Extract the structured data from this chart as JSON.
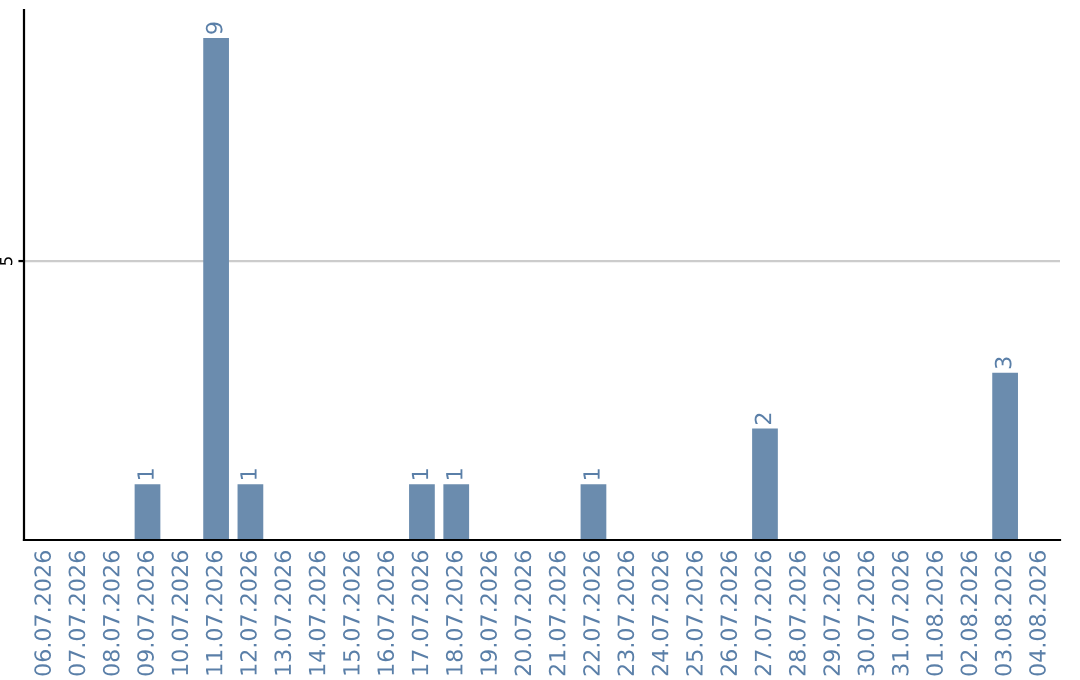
{
  "chart_data": {
    "type": "bar",
    "categories": [
      "06.07.2026",
      "07.07.2026",
      "08.07.2026",
      "09.07.2026",
      "10.07.2026",
      "11.07.2026",
      "12.07.2026",
      "13.07.2026",
      "14.07.2026",
      "15.07.2026",
      "16.07.2026",
      "17.07.2026",
      "18.07.2026",
      "19.07.2026",
      "20.07.2026",
      "21.07.2026",
      "22.07.2026",
      "23.07.2026",
      "24.07.2026",
      "25.07.2026",
      "26.07.2026",
      "27.07.2026",
      "28.07.2026",
      "29.07.2026",
      "30.07.2026",
      "31.07.2026",
      "01.08.2026",
      "02.08.2026",
      "03.08.2026",
      "04.08.2026"
    ],
    "values": [
      0,
      0,
      0,
      1,
      0,
      9,
      1,
      0,
      0,
      0,
      0,
      1,
      1,
      0,
      0,
      0,
      1,
      0,
      0,
      0,
      0,
      2,
      0,
      0,
      0,
      0,
      0,
      0,
      3,
      0
    ],
    "value_labels": [
      null,
      null,
      null,
      "1",
      null,
      "9",
      "1",
      null,
      null,
      null,
      null,
      "1",
      "1",
      null,
      null,
      null,
      "1",
      null,
      null,
      null,
      null,
      "2",
      null,
      null,
      null,
      null,
      null,
      null,
      "3",
      null
    ],
    "color": "#6b8cae",
    "ylim": [
      0,
      9.5
    ],
    "yticks": [
      5
    ],
    "grid": "y"
  }
}
